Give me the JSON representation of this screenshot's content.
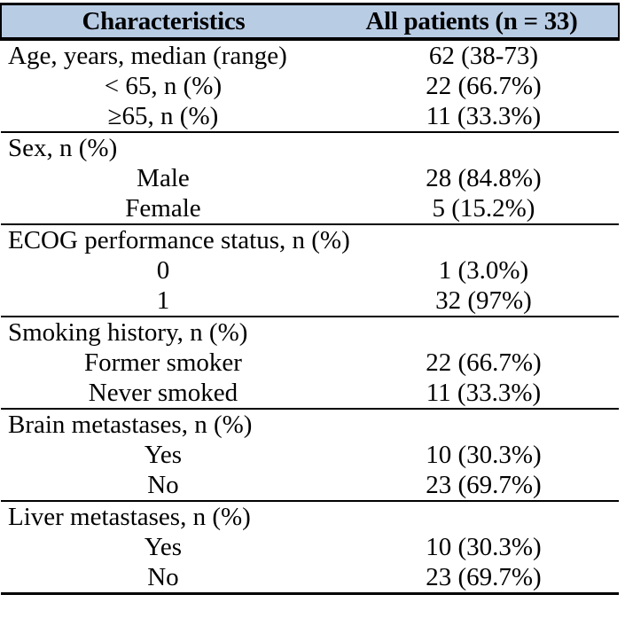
{
  "title": "Patient baseline characteristics table",
  "colors": {
    "header_bg": "#b8cce4",
    "border": "#000000",
    "text": "#000000",
    "page_bg": "#ffffff"
  },
  "table": {
    "columns": [
      "Characteristics",
      "All patients (n = 33)"
    ],
    "sections": [
      {
        "rows": [
          {
            "label": "Age, years, median (range)",
            "value": "62 (38-73)",
            "align": "left"
          },
          {
            "label": "< 65, n (%)",
            "value": "22 (66.7%)",
            "align": "center"
          },
          {
            "label": "≥65, n (%)",
            "value": "11 (33.3%)",
            "align": "center"
          }
        ]
      },
      {
        "rows": [
          {
            "label": "Sex, n (%)",
            "value": "",
            "align": "left"
          },
          {
            "label": "Male",
            "value": "28 (84.8%)",
            "align": "center"
          },
          {
            "label": "Female",
            "value": "5 (15.2%)",
            "align": "center"
          }
        ]
      },
      {
        "rows": [
          {
            "label": "ECOG performance status, n (%)",
            "value": "",
            "align": "left"
          },
          {
            "label": "0",
            "value": "1 (3.0%)",
            "align": "center"
          },
          {
            "label": "1",
            "value": "32 (97%)",
            "align": "center"
          }
        ]
      },
      {
        "rows": [
          {
            "label": "Smoking history, n (%)",
            "value": "",
            "align": "left"
          },
          {
            "label": "Former smoker",
            "value": "22 (66.7%)",
            "align": "center"
          },
          {
            "label": "Never smoked",
            "value": "11 (33.3%)",
            "align": "center"
          }
        ]
      },
      {
        "rows": [
          {
            "label": "Brain metastases, n (%)",
            "value": "",
            "align": "left"
          },
          {
            "label": "Yes",
            "value": "10 (30.3%)",
            "align": "center"
          },
          {
            "label": "No",
            "value": "23 (69.7%)",
            "align": "center"
          }
        ]
      },
      {
        "rows": [
          {
            "label": "Liver metastases, n (%)",
            "value": "",
            "align": "left"
          },
          {
            "label": "Yes",
            "value": "10 (30.3%)",
            "align": "center"
          },
          {
            "label": "No",
            "value": "23 (69.7%)",
            "align": "center"
          }
        ]
      }
    ]
  },
  "chart_data": {
    "type": "table",
    "columns": [
      "Characteristics",
      "All patients (n = 33)"
    ],
    "rows": [
      [
        "Age, years, median (range)",
        "62 (38-73)"
      ],
      [
        "< 65, n (%)",
        "22 (66.7%)"
      ],
      [
        "≥65, n (%)",
        "11 (33.3%)"
      ],
      [
        "Sex, n (%)",
        ""
      ],
      [
        "Male",
        "28 (84.8%)"
      ],
      [
        "Female",
        "5 (15.2%)"
      ],
      [
        "ECOG performance status, n (%)",
        ""
      ],
      [
        "0",
        "1 (3.0%)"
      ],
      [
        "1",
        "32 (97%)"
      ],
      [
        "Smoking history, n (%)",
        ""
      ],
      [
        "Former smoker",
        "22 (66.7%)"
      ],
      [
        "Never smoked",
        "11 (33.3%)"
      ],
      [
        "Brain metastases, n (%)",
        ""
      ],
      [
        "Yes",
        "10 (30.3%)"
      ],
      [
        "No",
        "23 (69.7%)"
      ],
      [
        "Liver metastases, n (%)",
        ""
      ],
      [
        "Yes",
        "10 (30.3%)"
      ],
      [
        "No",
        "23 (69.7%)"
      ]
    ]
  }
}
